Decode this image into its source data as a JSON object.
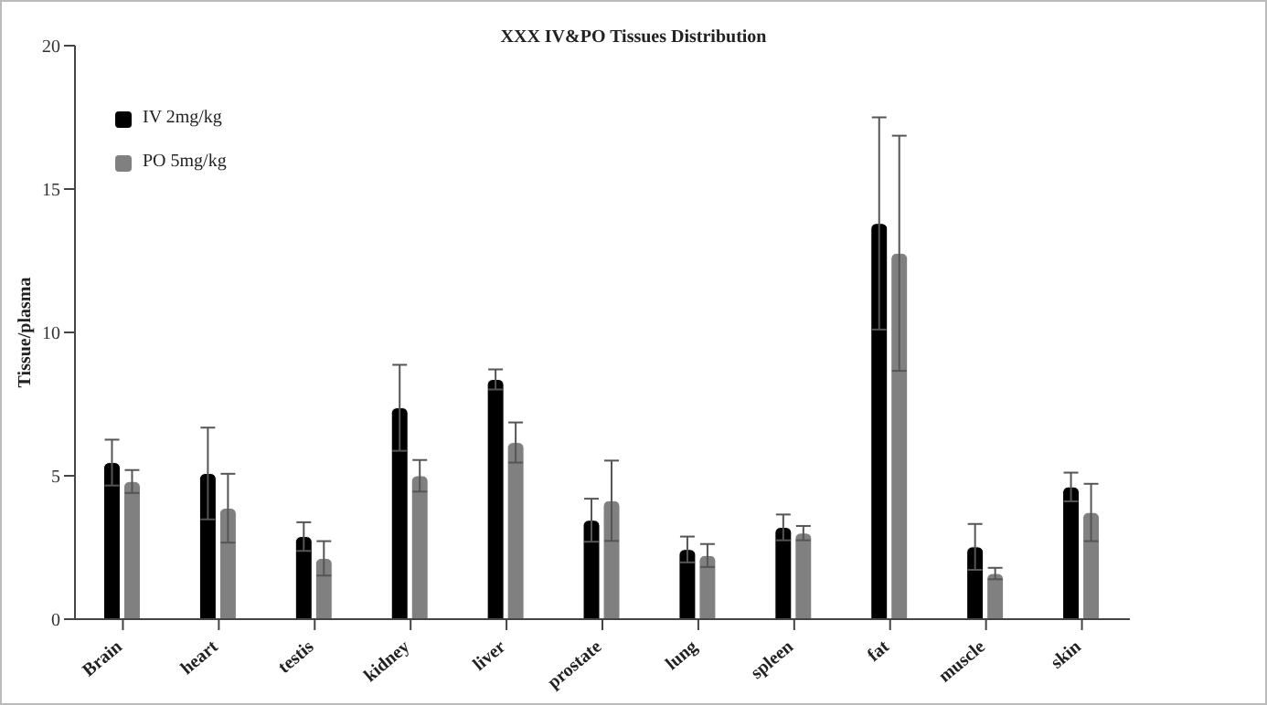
{
  "chart_data": {
    "type": "bar",
    "title": "XXX IV&PO Tissues Distribution",
    "ylabel": "Tissue/plasma",
    "categories": [
      "Brain",
      "heart",
      "testis",
      "kidney",
      "liver",
      "prostate",
      "lung",
      "spleen",
      "fat",
      "muscle",
      "skin"
    ],
    "series": [
      {
        "name": "IV 2mg/kg",
        "color": "#000000",
        "values": [
          5.46,
          5.08,
          2.88,
          7.37,
          8.36,
          3.45,
          2.43,
          3.2,
          13.8,
          2.52,
          4.61
        ],
        "errors": [
          0.8,
          1.6,
          0.5,
          1.5,
          0.35,
          0.75,
          0.45,
          0.45,
          3.7,
          0.8,
          0.5
        ]
      },
      {
        "name": "PO 5mg/kg",
        "color": "#808080",
        "values": [
          4.8,
          3.87,
          2.12,
          5.0,
          6.16,
          4.13,
          2.22,
          3.0,
          12.76,
          1.59,
          3.72
        ],
        "errors": [
          0.4,
          1.2,
          0.6,
          0.55,
          0.7,
          1.4,
          0.4,
          0.25,
          4.1,
          0.2,
          1.0
        ]
      }
    ],
    "ylim": [
      0,
      20
    ],
    "yticks": [
      0,
      5,
      10,
      15,
      20
    ],
    "grid": false,
    "legend": "top left"
  }
}
